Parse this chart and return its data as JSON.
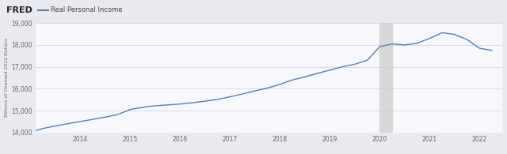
{
  "title": "Real Personal Income",
  "ylabel": "Billions of Chained 2012 Dollars",
  "background_color": "#e8eaf0",
  "plot_background": "#f8f8fc",
  "line_color": "#5080b0",
  "recession_color": "#d8d8d8",
  "recession_start": 2020.0,
  "recession_end": 2020.25,
  "ylim": [
    14000,
    19000
  ],
  "yticks": [
    14000,
    15000,
    16000,
    17000,
    18000,
    19000
  ],
  "xlim": [
    2013.1,
    2022.45
  ],
  "xticks": [
    2014,
    2015,
    2016,
    2017,
    2018,
    2019,
    2020,
    2021,
    2022
  ],
  "fred_text": "FRED",
  "fred_color": "#222222",
  "legend_line_color": "#5080b0",
  "title_color": "#444444",
  "x": [
    2013.1,
    2013.25,
    2013.5,
    2013.75,
    2014.0,
    2014.25,
    2014.5,
    2014.75,
    2015.0,
    2015.25,
    2015.5,
    2015.75,
    2016.0,
    2016.25,
    2016.5,
    2016.75,
    2017.0,
    2017.25,
    2017.5,
    2017.75,
    2018.0,
    2018.25,
    2018.5,
    2018.75,
    2019.0,
    2019.25,
    2019.5,
    2019.75,
    2020.0,
    2020.25,
    2020.5,
    2020.75,
    2021.0,
    2021.25,
    2021.5,
    2021.75,
    2022.0,
    2022.25
  ],
  "y": [
    14080,
    14180,
    14300,
    14400,
    14500,
    14600,
    14700,
    14820,
    15050,
    15150,
    15220,
    15260,
    15300,
    15360,
    15430,
    15510,
    15630,
    15760,
    15900,
    16030,
    16200,
    16400,
    16540,
    16700,
    16850,
    17000,
    17120,
    17300,
    17920,
    18050,
    18000,
    18080,
    18300,
    18560,
    18480,
    18250,
    17850,
    17750
  ]
}
